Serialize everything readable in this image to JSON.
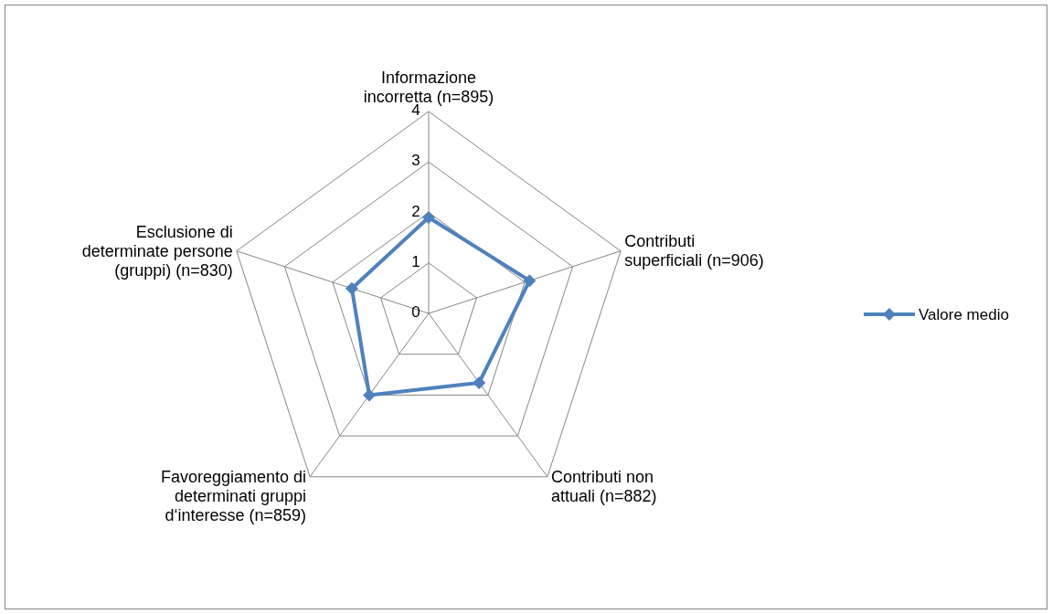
{
  "chart_data": {
    "type": "radar",
    "categories": [
      "Informazione incorretta (n=895)",
      "Contributi superficiali (n=906)",
      "Contributi non attuali (n=882)",
      "Favoreggiamento di determinati gruppi d‘interesse (n=859)",
      "Esclusione di determinate persone (gruppi) (n=830)"
    ],
    "series": [
      {
        "name": "Valore medio",
        "color": "#4f81bd",
        "values": [
          1.9,
          2.1,
          1.7,
          2.0,
          1.6
        ]
      }
    ],
    "ylim": [
      0,
      4
    ],
    "yticks": [
      0,
      1,
      2,
      3,
      4
    ],
    "grid": true,
    "legend": "right",
    "marker": "diamond",
    "line_style": "solid"
  }
}
